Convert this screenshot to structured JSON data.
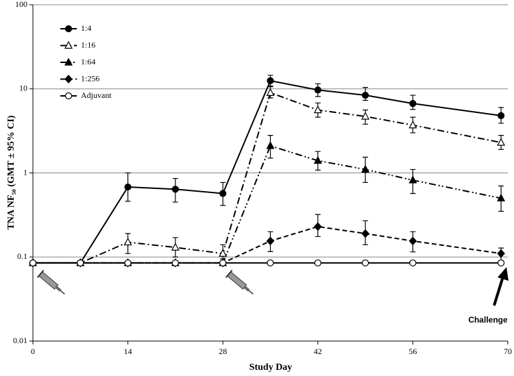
{
  "chart_data": {
    "type": "line",
    "log_y": true,
    "grid": true,
    "legend": "upper left",
    "xlabel": "Study Day",
    "ylabel": "TNA NF₅₀ (GMT ± 95% CI)",
    "annotation": "Challenge",
    "xlim": [
      0,
      70
    ],
    "xticks": [
      0,
      14,
      28,
      42,
      56,
      70
    ],
    "ylim": [
      0.01,
      100
    ],
    "yticks": [
      0.01,
      0.1,
      1,
      10,
      100
    ],
    "x": [
      0,
      7,
      14,
      21,
      28,
      35,
      42,
      49,
      56,
      69
    ],
    "series": [
      {
        "name": "1:4",
        "color": "#000000",
        "dash": "solid",
        "marker": "circle",
        "values": [
          0.085,
          0.085,
          0.68,
          0.64,
          0.57,
          12.5,
          9.7,
          8.4,
          6.7,
          4.8
        ],
        "ci_low": [
          null,
          null,
          0.46,
          0.45,
          0.41,
          10.8,
          8.1,
          7.3,
          5.7,
          3.9
        ],
        "ci_high": [
          null,
          null,
          1.0,
          0.86,
          0.77,
          14.5,
          11.5,
          10.4,
          8.4,
          6.0
        ]
      },
      {
        "name": "1:16",
        "color": "#000000",
        "dash": "dashdot",
        "marker": "triangle-open",
        "values": [
          0.085,
          0.085,
          0.15,
          0.13,
          0.11,
          9.0,
          5.6,
          4.7,
          3.7,
          2.3
        ],
        "ci_low": [
          null,
          null,
          0.11,
          0.1,
          0.095,
          7.8,
          4.6,
          3.8,
          3.0,
          1.9
        ],
        "ci_high": [
          null,
          null,
          0.19,
          0.17,
          0.14,
          10.6,
          6.8,
          5.6,
          4.6,
          2.8
        ]
      },
      {
        "name": "1:64",
        "color": "#000000",
        "dash": "dashdotdot",
        "marker": "triangle",
        "values": [
          0.085,
          0.085,
          0.085,
          0.085,
          0.085,
          2.1,
          1.4,
          1.1,
          0.82,
          0.5
        ],
        "ci_low": [
          null,
          null,
          null,
          null,
          null,
          1.5,
          1.08,
          0.77,
          0.57,
          0.35
        ],
        "ci_high": [
          null,
          null,
          null,
          null,
          null,
          2.8,
          1.8,
          1.54,
          1.1,
          0.7
        ]
      },
      {
        "name": "1:256",
        "color": "#000000",
        "dash": "dashed",
        "marker": "diamond",
        "values": [
          0.085,
          0.085,
          0.085,
          0.085,
          0.085,
          0.155,
          0.23,
          0.19,
          0.155,
          0.11
        ],
        "ci_low": [
          null,
          null,
          null,
          null,
          null,
          0.116,
          0.175,
          0.14,
          0.115,
          0.09
        ],
        "ci_high": [
          null,
          null,
          null,
          null,
          null,
          0.2,
          0.32,
          0.27,
          0.2,
          0.128
        ]
      },
      {
        "name": "Adjuvant",
        "color": "#000000",
        "dash": "solid",
        "marker": "circle-open",
        "values": [
          0.085,
          0.085,
          0.085,
          0.085,
          0.085,
          0.085,
          0.085,
          0.085,
          0.085,
          0.085
        ],
        "ci_low": [
          null,
          null,
          null,
          null,
          null,
          null,
          null,
          null,
          null,
          null
        ],
        "ci_high": [
          null,
          null,
          null,
          null,
          null,
          null,
          null,
          null,
          null,
          null
        ]
      }
    ]
  }
}
